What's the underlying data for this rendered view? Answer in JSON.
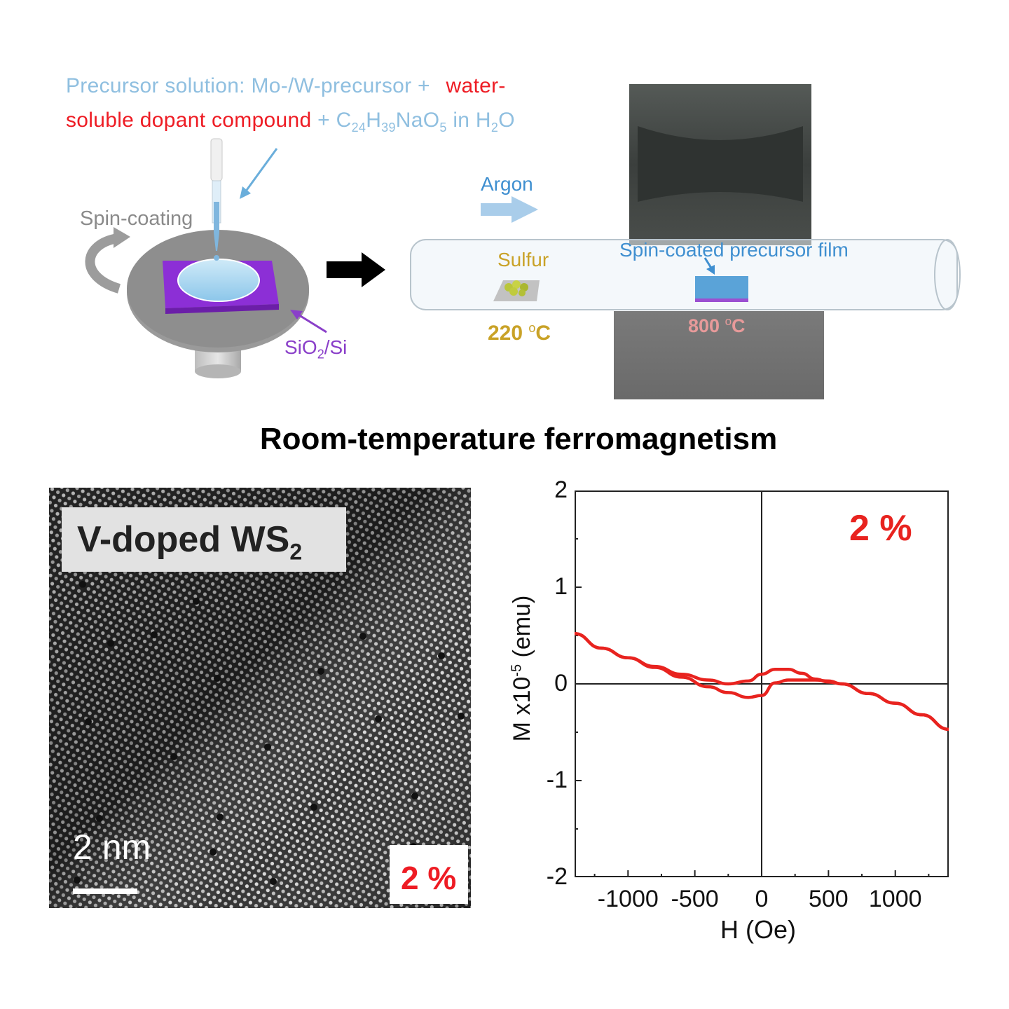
{
  "precursor": {
    "line1_blue": "Precursor  solution:  Mo-/W-precursor  +",
    "line1_red": "water-",
    "line2_red": "soluble  dopant  compound",
    "line2_blue_a": " + C",
    "sub_24": "24",
    "line2_blue_b": "H",
    "sub_39": "39",
    "line2_blue_c": "NaO",
    "sub_5": "5",
    "line2_blue_d": " in H",
    "sub_2": "2",
    "line2_blue_e": "O"
  },
  "labels": {
    "spin_coating": "Spin-coating",
    "argon": "Argon",
    "sulfur": "Sulfur",
    "sulfur_temp": "220 ",
    "sulfur_temp_unit": "C",
    "film": "Spin-coated  precursor  film",
    "film_temp": "800 ",
    "film_temp_unit": "C",
    "degree_sign": "o",
    "substrate_a": "SiO",
    "substrate_sub": "2",
    "substrate_b": "/Si"
  },
  "title": "Room-temperature ferromagnetism",
  "stem": {
    "label_a": "V-doped WS",
    "label_sub": "2",
    "scale": "2 nm",
    "percent": "2 %"
  },
  "chart_data": {
    "type": "line",
    "xlabel": "H (Oe)",
    "ylabel_a": "M x10",
    "ylabel_exp": "-5",
    "ylabel_b": " (emu)",
    "xlim": [
      -1400,
      1400
    ],
    "ylim": [
      -2,
      2
    ],
    "yticks": [
      "2",
      "1",
      "0",
      "-1",
      "-2"
    ],
    "xticks": [
      "-1000",
      "-500",
      "0",
      "500",
      "1000"
    ],
    "annotation": "2 %",
    "line_color": "#e8231f",
    "series": [
      {
        "values_x": [
          -1400,
          -1200,
          -1000,
          -800,
          -600,
          -400,
          -250,
          -100,
          0,
          100,
          200,
          300,
          400,
          500,
          600,
          800,
          1000,
          1200,
          1400
        ],
        "values_y": [
          0.52,
          0.37,
          0.27,
          0.18,
          0.1,
          0.04,
          0.0,
          0.03,
          0.1,
          0.15,
          0.15,
          0.11,
          0.05,
          0.02,
          0.0,
          -0.1,
          -0.2,
          -0.32,
          -0.47
        ]
      },
      {
        "values_x": [
          -1400,
          -1200,
          -1000,
          -800,
          -600,
          -400,
          -250,
          -100,
          0,
          100,
          200,
          300,
          400,
          500,
          600,
          800,
          1000,
          1200,
          1400
        ],
        "values_y": [
          0.52,
          0.37,
          0.27,
          0.17,
          0.07,
          -0.03,
          -0.09,
          -0.14,
          -0.12,
          0.01,
          0.04,
          0.04,
          0.04,
          0.03,
          0.0,
          -0.1,
          -0.2,
          -0.32,
          -0.47
        ]
      }
    ]
  }
}
